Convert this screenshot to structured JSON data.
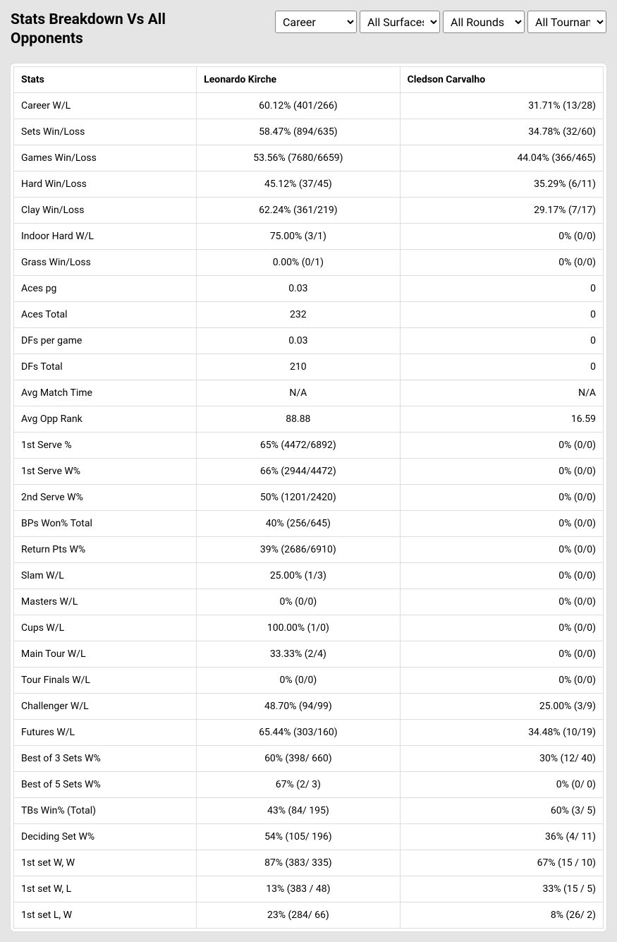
{
  "title": "Stats Breakdown Vs All Opponents",
  "filters": {
    "period": {
      "selected": "Career",
      "options": [
        "Career"
      ]
    },
    "surface": {
      "selected": "All Surfaces",
      "options": [
        "All Surfaces"
      ]
    },
    "rounds": {
      "selected": "All Rounds",
      "options": [
        "All Rounds"
      ]
    },
    "tour": {
      "selected": "All Tournaments",
      "options": [
        "All Tournaments"
      ]
    }
  },
  "columns": [
    "Stats",
    "Leonardo Kirche",
    "Cledson Carvalho"
  ],
  "rows": [
    [
      "Career W/L",
      "60.12% (401/266)",
      "31.71% (13/28)"
    ],
    [
      "Sets Win/Loss",
      "58.47% (894/635)",
      "34.78% (32/60)"
    ],
    [
      "Games Win/Loss",
      "53.56% (7680/6659)",
      "44.04% (366/465)"
    ],
    [
      "Hard Win/Loss",
      "45.12% (37/45)",
      "35.29% (6/11)"
    ],
    [
      "Clay Win/Loss",
      "62.24% (361/219)",
      "29.17% (7/17)"
    ],
    [
      "Indoor Hard W/L",
      "75.00% (3/1)",
      "0% (0/0)"
    ],
    [
      "Grass Win/Loss",
      "0.00% (0/1)",
      "0% (0/0)"
    ],
    [
      "Aces pg",
      "0.03",
      "0"
    ],
    [
      "Aces Total",
      "232",
      "0"
    ],
    [
      "DFs per game",
      "0.03",
      "0"
    ],
    [
      "DFs Total",
      "210",
      "0"
    ],
    [
      "Avg Match Time",
      "N/A",
      "N/A"
    ],
    [
      "Avg Opp Rank",
      "88.88",
      "16.59"
    ],
    [
      "1st Serve %",
      "65% (4472/6892)",
      "0% (0/0)"
    ],
    [
      "1st Serve W%",
      "66% (2944/4472)",
      "0% (0/0)"
    ],
    [
      "2nd Serve W%",
      "50% (1201/2420)",
      "0% (0/0)"
    ],
    [
      "BPs Won% Total",
      "40% (256/645)",
      "0% (0/0)"
    ],
    [
      "Return Pts W%",
      "39% (2686/6910)",
      "0% (0/0)"
    ],
    [
      "Slam W/L",
      "25.00% (1/3)",
      "0% (0/0)"
    ],
    [
      "Masters W/L",
      "0% (0/0)",
      "0% (0/0)"
    ],
    [
      "Cups W/L",
      "100.00% (1/0)",
      "0% (0/0)"
    ],
    [
      "Main Tour W/L",
      "33.33% (2/4)",
      "0% (0/0)"
    ],
    [
      "Tour Finals W/L",
      "0% (0/0)",
      "0% (0/0)"
    ],
    [
      "Challenger W/L",
      "48.70% (94/99)",
      "25.00% (3/9)"
    ],
    [
      "Futures W/L",
      "65.44% (303/160)",
      "34.48% (10/19)"
    ],
    [
      "Best of 3 Sets W%",
      "60% (398/ 660)",
      "30% (12/ 40)"
    ],
    [
      "Best of 5 Sets W%",
      "67% (2/ 3)",
      "0% (0/ 0)"
    ],
    [
      "TBs Win% (Total)",
      "43% (84/ 195)",
      "60% (3/ 5)"
    ],
    [
      "Deciding Set W%",
      "54% (105/ 196)",
      "36% (4/ 11)"
    ],
    [
      "1st set W, W",
      "87% (383/ 335)",
      "67% (15 / 10)"
    ],
    [
      "1st set W, L",
      "13% (383 / 48)",
      "33% (15 / 5)"
    ],
    [
      "1st set L, W",
      "23% (284/ 66)",
      "8% (26/ 2)"
    ]
  ]
}
